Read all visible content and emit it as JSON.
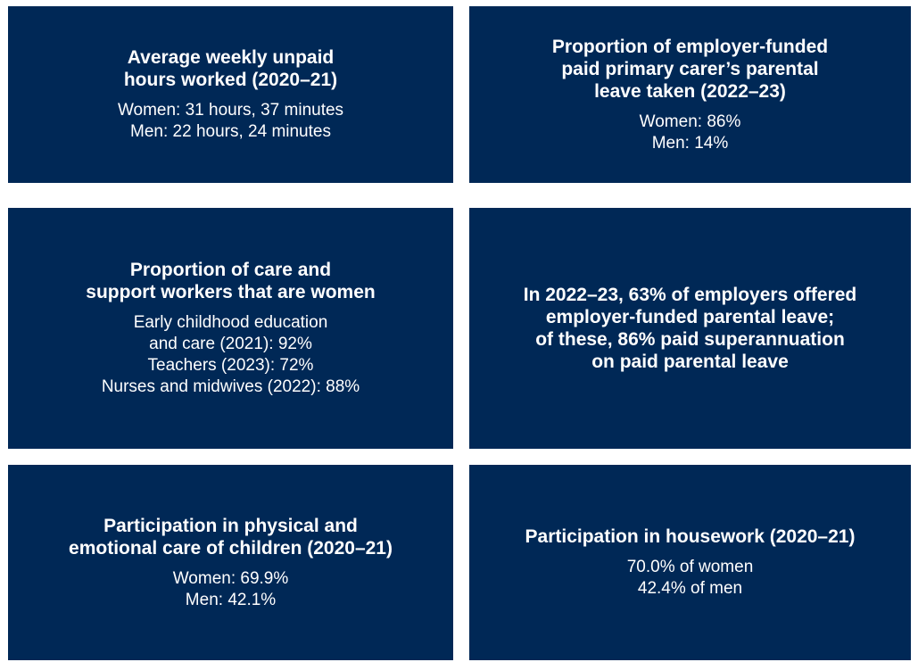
{
  "tiles": [
    {
      "title": [
        "Average weekly unpaid",
        "hours worked (2020–21)"
      ],
      "lines": [
        "Women: 31 hours, 37 minutes",
        "Men: 22 hours, 24 minutes"
      ]
    },
    {
      "title": [
        "Proportion of employer-funded",
        "paid primary carer’s parental",
        "leave taken (2022–23)"
      ],
      "lines": [
        "Women: 86%",
        "Men: 14%"
      ]
    },
    {
      "title": [
        "Proportion of care and",
        "support workers that are women"
      ],
      "lines": [
        "Early childhood education",
        "and care (2021): 92%",
        "Teachers (2023): 72%",
        "Nurses and midwives (2022): 88%"
      ]
    },
    {
      "title": [
        "In 2022–23, 63% of employers offered",
        "employer-funded parental leave;",
        "of these, 86% paid superannuation",
        "on paid parental leave"
      ],
      "lines": []
    },
    {
      "title": [
        "Participation in physical and",
        "emotional care of children (2020–21)"
      ],
      "lines": [
        "Women: 69.9%",
        "Men: 42.1%"
      ]
    },
    {
      "title": [
        "Participation in housework (2020–21)"
      ],
      "lines": [
        "70.0% of women",
        "42.4% of men"
      ]
    }
  ]
}
